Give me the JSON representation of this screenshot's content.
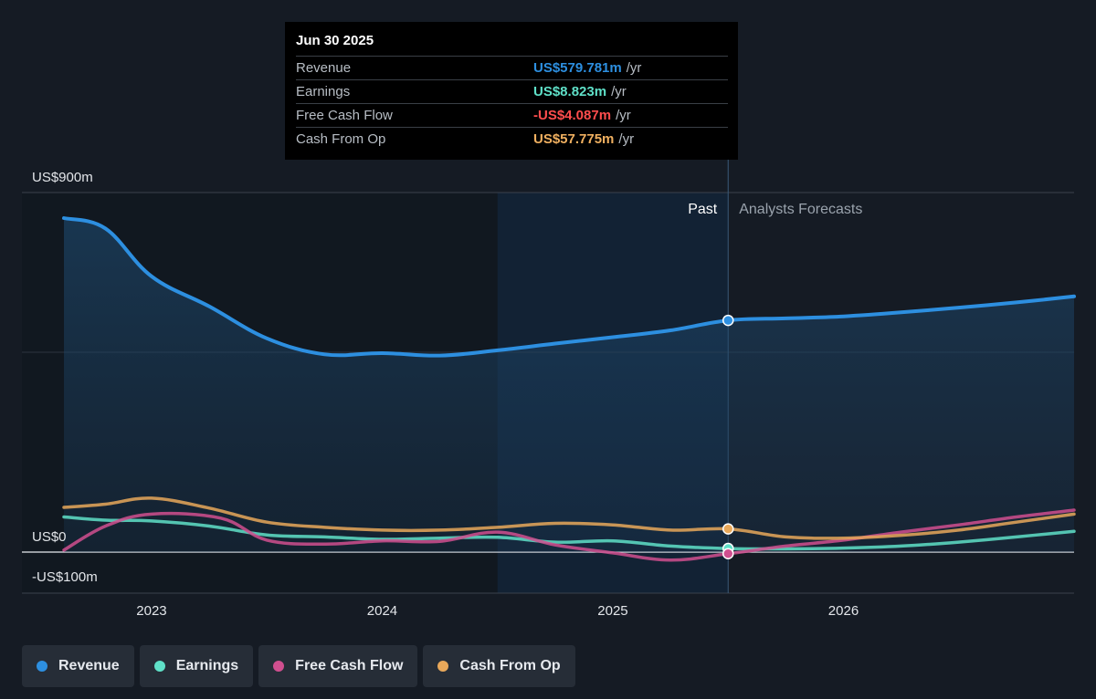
{
  "tooltip": {
    "date": "Jun 30 2025",
    "rows": [
      {
        "label": "Revenue",
        "value": "US$579.781m",
        "unit": "/yr",
        "color": "#2d8fe0"
      },
      {
        "label": "Earnings",
        "value": "US$8.823m",
        "unit": "/yr",
        "color": "#5fe0c8"
      },
      {
        "label": "Free Cash Flow",
        "value": "-US$4.087m",
        "unit": "/yr",
        "color": "#ff4d4d"
      },
      {
        "label": "Cash From Op",
        "value": "US$57.775m",
        "unit": "/yr",
        "color": "#f0b060"
      }
    ]
  },
  "regions": {
    "past": "Past",
    "forecast": "Analysts Forecasts"
  },
  "legend": [
    {
      "label": "Revenue",
      "color": "#2d8fe0"
    },
    {
      "label": "Earnings",
      "color": "#5fe0c8"
    },
    {
      "label": "Free Cash Flow",
      "color": "#d04f8f"
    },
    {
      "label": "Cash From Op",
      "color": "#e8a85a"
    }
  ],
  "chart_data": {
    "type": "line",
    "title": "",
    "xlabel": "",
    "ylabel": "",
    "y_tick_labels": [
      "US$900m",
      "US$0",
      "-US$100m"
    ],
    "y_tick_values": [
      900,
      0,
      -100
    ],
    "ylim": [
      -100,
      900
    ],
    "x_tick_labels": [
      "2023",
      "2024",
      "2025",
      "2026"
    ],
    "x_tick_values": [
      2023,
      2024,
      2025,
      2026
    ],
    "xlim": [
      2022.5,
      2027.0
    ],
    "past_end": 2025.5,
    "highlight_start": 2024.5,
    "grid": true,
    "legend_position": "bottom",
    "series": [
      {
        "name": "Revenue",
        "color": "#2d8fe0",
        "area": true,
        "x": [
          2022.62,
          2022.8,
          2023.0,
          2023.25,
          2023.5,
          2023.75,
          2024.0,
          2024.25,
          2024.5,
          2024.75,
          2025.0,
          2025.25,
          2025.5,
          2025.75,
          2026.0,
          2026.25,
          2026.5,
          2026.75,
          2027.0
        ],
        "y": [
          836,
          810,
          690,
          615,
          535,
          495,
          498,
          492,
          505,
          522,
          538,
          555,
          580,
          585,
          590,
          600,
          612,
          625,
          640
        ]
      },
      {
        "name": "Earnings",
        "color": "#5fe0c8",
        "area": false,
        "x": [
          2022.62,
          2022.8,
          2023.0,
          2023.25,
          2023.5,
          2023.75,
          2024.0,
          2024.25,
          2024.5,
          2024.75,
          2025.0,
          2025.25,
          2025.5,
          2025.75,
          2026.0,
          2026.25,
          2026.5,
          2026.75,
          2027.0
        ],
        "y": [
          88,
          80,
          78,
          65,
          43,
          38,
          32,
          35,
          37,
          25,
          28,
          15,
          9,
          8,
          10,
          15,
          25,
          38,
          52
        ]
      },
      {
        "name": "Free Cash Flow",
        "color": "#d04f8f",
        "area": false,
        "x": [
          2022.62,
          2022.8,
          2023.0,
          2023.3,
          2023.5,
          2023.75,
          2024.0,
          2024.25,
          2024.5,
          2024.75,
          2025.0,
          2025.25,
          2025.5,
          2025.75,
          2026.0,
          2026.25,
          2026.5,
          2026.75,
          2027.0
        ],
        "y": [
          5,
          65,
          95,
          85,
          30,
          20,
          28,
          27,
          50,
          18,
          -2,
          -20,
          -4,
          15,
          30,
          50,
          68,
          88,
          105
        ]
      },
      {
        "name": "Cash From Op",
        "color": "#e8a85a",
        "area": false,
        "x": [
          2022.62,
          2022.8,
          2023.0,
          2023.25,
          2023.5,
          2023.75,
          2024.0,
          2024.25,
          2024.5,
          2024.75,
          2025.0,
          2025.25,
          2025.5,
          2025.75,
          2026.0,
          2026.25,
          2026.5,
          2026.75,
          2027.0
        ],
        "y": [
          112,
          120,
          135,
          110,
          75,
          62,
          55,
          55,
          62,
          72,
          68,
          55,
          58,
          38,
          35,
          42,
          55,
          75,
          95
        ]
      }
    ],
    "markers": [
      {
        "series": "Revenue",
        "x": 2025.5,
        "y": 580
      },
      {
        "series": "Cash From Op",
        "x": 2025.5,
        "y": 58
      },
      {
        "series": "Earnings",
        "x": 2025.5,
        "y": 9
      },
      {
        "series": "Free Cash Flow",
        "x": 2025.5,
        "y": -4
      }
    ]
  }
}
